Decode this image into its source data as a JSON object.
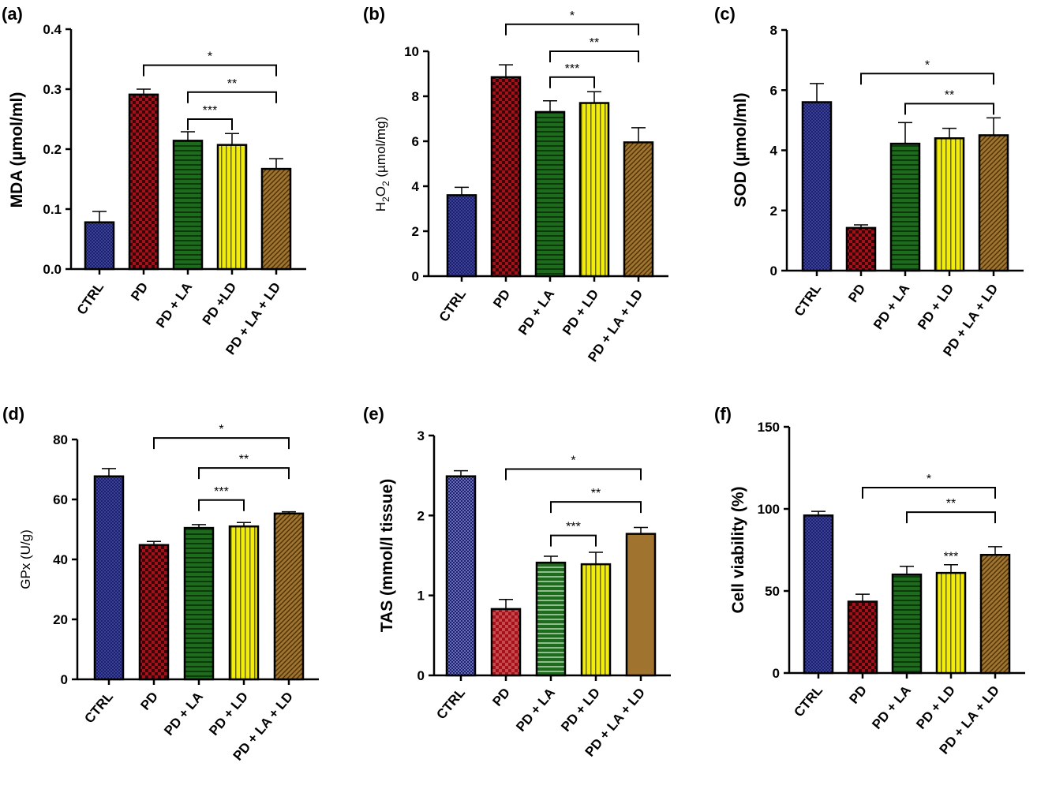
{
  "figure": {
    "panels": [
      {
        "letter": "(a)",
        "ylabel": "MDA (µmol/ml)",
        "ylabel_weight": "bold",
        "ylabel_sub": null,
        "yticks": [
          "0.0",
          "0.1",
          "0.2",
          "0.3",
          "0.4"
        ]
      },
      {
        "letter": "(b)",
        "ylabel": "H2O2 (µmol/mg)",
        "ylabel_weight": "normal",
        "ylabel_sub": {
          "pre": "H",
          "s1": "2",
          "mid": "O",
          "s2": "2",
          "post": " (µmol/mg)"
        },
        "yticks": [
          "0",
          "2",
          "4",
          "6",
          "8",
          "10"
        ]
      },
      {
        "letter": "(c)",
        "ylabel": "SOD (µmol/ml)",
        "ylabel_weight": "bold",
        "ylabel_sub": null,
        "yticks": [
          "0",
          "2",
          "4",
          "6",
          "8"
        ]
      },
      {
        "letter": "(d)",
        "ylabel": "GPx (U/g)",
        "ylabel_weight": "normal",
        "ylabel_sub": null,
        "yticks": [
          "0",
          "20",
          "40",
          "60",
          "80"
        ]
      },
      {
        "letter": "(e)",
        "ylabel": "TAS (mmol/l tissue)",
        "ylabel_weight": "bold",
        "ylabel_sub": null,
        "yticks": [
          "0",
          "1",
          "2",
          "3"
        ]
      },
      {
        "letter": "(f)",
        "ylabel": "Cell viability (%)",
        "ylabel_weight": "bold",
        "ylabel_sub": null,
        "yticks": [
          "0",
          "50",
          "100",
          "150"
        ]
      }
    ],
    "series_colors": [
      "#1b1f6e",
      "#a3121c",
      "#1e6b1e",
      "#f2ec0c",
      "#a0742e"
    ]
  },
  "chart_data": [
    {
      "type": "bar",
      "categories": [
        "CTRL",
        "PD",
        "PD + LA",
        "PD +LD",
        "PD + LA + LD"
      ],
      "values": [
        0.078,
        0.291,
        0.214,
        0.207,
        0.167
      ],
      "errors": [
        0.018,
        0.009,
        0.015,
        0.019,
        0.017
      ],
      "ylabel": "MDA (µmol/ml)",
      "ylim": [
        0,
        0.4
      ],
      "significance": [
        {
          "from": 1,
          "to": 4,
          "label": "*",
          "y": 0.34
        },
        {
          "from": 2,
          "to": 4,
          "label": "**",
          "y": 0.295
        },
        {
          "from": 2,
          "to": 3,
          "label": "***",
          "y": 0.25
        }
      ]
    },
    {
      "type": "bar",
      "categories": [
        "CTRL",
        "PD",
        "PD + LA",
        "PD + LD",
        "PD + LA + LD"
      ],
      "values": [
        3.6,
        8.85,
        7.3,
        7.7,
        5.95
      ],
      "errors": [
        0.35,
        0.55,
        0.5,
        0.5,
        0.65
      ],
      "ylabel": "H2O2 (µmol/mg)",
      "ylim": [
        0,
        10
      ],
      "significance": [
        {
          "from": 1,
          "to": 4,
          "label": "*",
          "y": 11.2
        },
        {
          "from": 2,
          "to": 4,
          "label": "**",
          "y": 10.0
        },
        {
          "from": 2,
          "to": 3,
          "label": "***",
          "y": 8.85
        }
      ]
    },
    {
      "type": "bar",
      "categories": [
        "CTRL",
        "PD",
        "PD + LA",
        "PD + LD",
        "PD + LA + LD"
      ],
      "values": [
        5.6,
        1.42,
        4.22,
        4.4,
        4.5
      ],
      "errors": [
        0.62,
        0.1,
        0.7,
        0.33,
        0.58
      ],
      "ylabel": "SOD (µmol/ml)",
      "ylim": [
        0,
        8
      ],
      "significance": [
        {
          "from": 1,
          "to": 4,
          "label": "*",
          "y": 6.55
        },
        {
          "from": 2,
          "to": 4,
          "label": "**",
          "y": 5.55
        }
      ]
    },
    {
      "type": "bar",
      "categories": [
        "CTRL",
        "PD",
        "PD + LA",
        "PD + LD",
        "PD + LA + LD"
      ],
      "values": [
        67.7,
        44.8,
        50.5,
        51.0,
        55.3
      ],
      "errors": [
        2.6,
        1.2,
        1.1,
        1.3,
        0.6
      ],
      "ylabel": "GPx (U/g)",
      "ylim": [
        0,
        80
      ],
      "significance": [
        {
          "from": 1,
          "to": 4,
          "label": "*",
          "y": 80.5
        },
        {
          "from": 2,
          "to": 4,
          "label": "**",
          "y": 70.5
        },
        {
          "from": 2,
          "to": 3,
          "label": "***",
          "y": 59.8
        }
      ]
    },
    {
      "type": "bar",
      "categories": [
        "CTRL",
        "PD",
        "PD + LA",
        "PD + LD",
        "PD + LA + LD"
      ],
      "values": [
        2.49,
        0.83,
        1.41,
        1.39,
        1.77
      ],
      "errors": [
        0.07,
        0.12,
        0.08,
        0.15,
        0.08
      ],
      "ylabel": "TAS (mmol/l tissue)",
      "ylim": [
        0,
        3
      ],
      "significance": [
        {
          "from": 1,
          "to": 4,
          "label": "*",
          "y": 2.58
        },
        {
          "from": 2,
          "to": 4,
          "label": "**",
          "y": 2.17
        },
        {
          "from": 2,
          "to": 3,
          "label": "***",
          "y": 1.75
        }
      ]
    },
    {
      "type": "bar",
      "categories": [
        "CTRL",
        "PD",
        "PD + LA",
        "PD + LD",
        "PD + LA + LD"
      ],
      "values": [
        96,
        43.5,
        60,
        61,
        72
      ],
      "errors": [
        2.5,
        4.5,
        5,
        5,
        5
      ],
      "ylabel": "Cell viability (%)",
      "ylim": [
        0,
        150
      ],
      "significance": [
        {
          "from": 1,
          "to": 4,
          "label": "*",
          "y": 113
        },
        {
          "from": 2,
          "to": 4,
          "label": "**",
          "y": 98
        }
      ],
      "annotations": [
        {
          "bar": 3,
          "label": "***"
        }
      ]
    }
  ]
}
